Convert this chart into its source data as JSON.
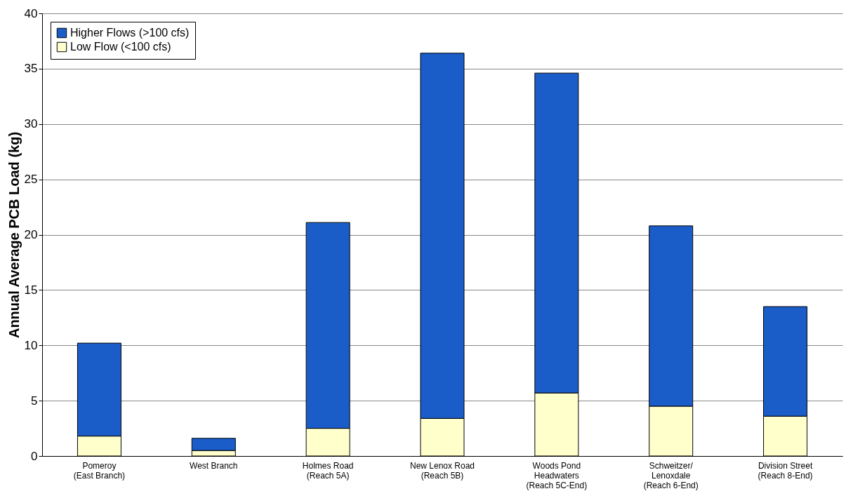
{
  "chart_data": {
    "type": "bar",
    "stacked": true,
    "ylabel": "Annual Average PCB Load (kg)",
    "categories": [
      "Pomeroy\n(East Branch)",
      "West Branch",
      "Holmes Road\n(Reach 5A)",
      "New Lenox Road\n(Reach 5B)",
      "Woods Pond\nHeadwaters\n(Reach 5C-End)",
      "Schweitzer/\nLenoxdale\n(Reach 6-End)",
      "Division Street\n(Reach 8-End)"
    ],
    "series": [
      {
        "name": "Low Flow (<100 cfs)",
        "color": "#ffffcc",
        "values": [
          1.8,
          0.5,
          2.5,
          3.4,
          5.7,
          4.5,
          3.6
        ]
      },
      {
        "name": "Higher Flows (>100 cfs)",
        "color": "#1a5dc8",
        "values": [
          8.4,
          1.1,
          18.6,
          33.0,
          28.9,
          16.3,
          9.9
        ]
      }
    ],
    "ylim": [
      0,
      40
    ],
    "yticks": [
      0,
      5,
      10,
      15,
      20,
      25,
      30,
      35,
      40
    ],
    "grid": "y",
    "legend": "top left"
  }
}
